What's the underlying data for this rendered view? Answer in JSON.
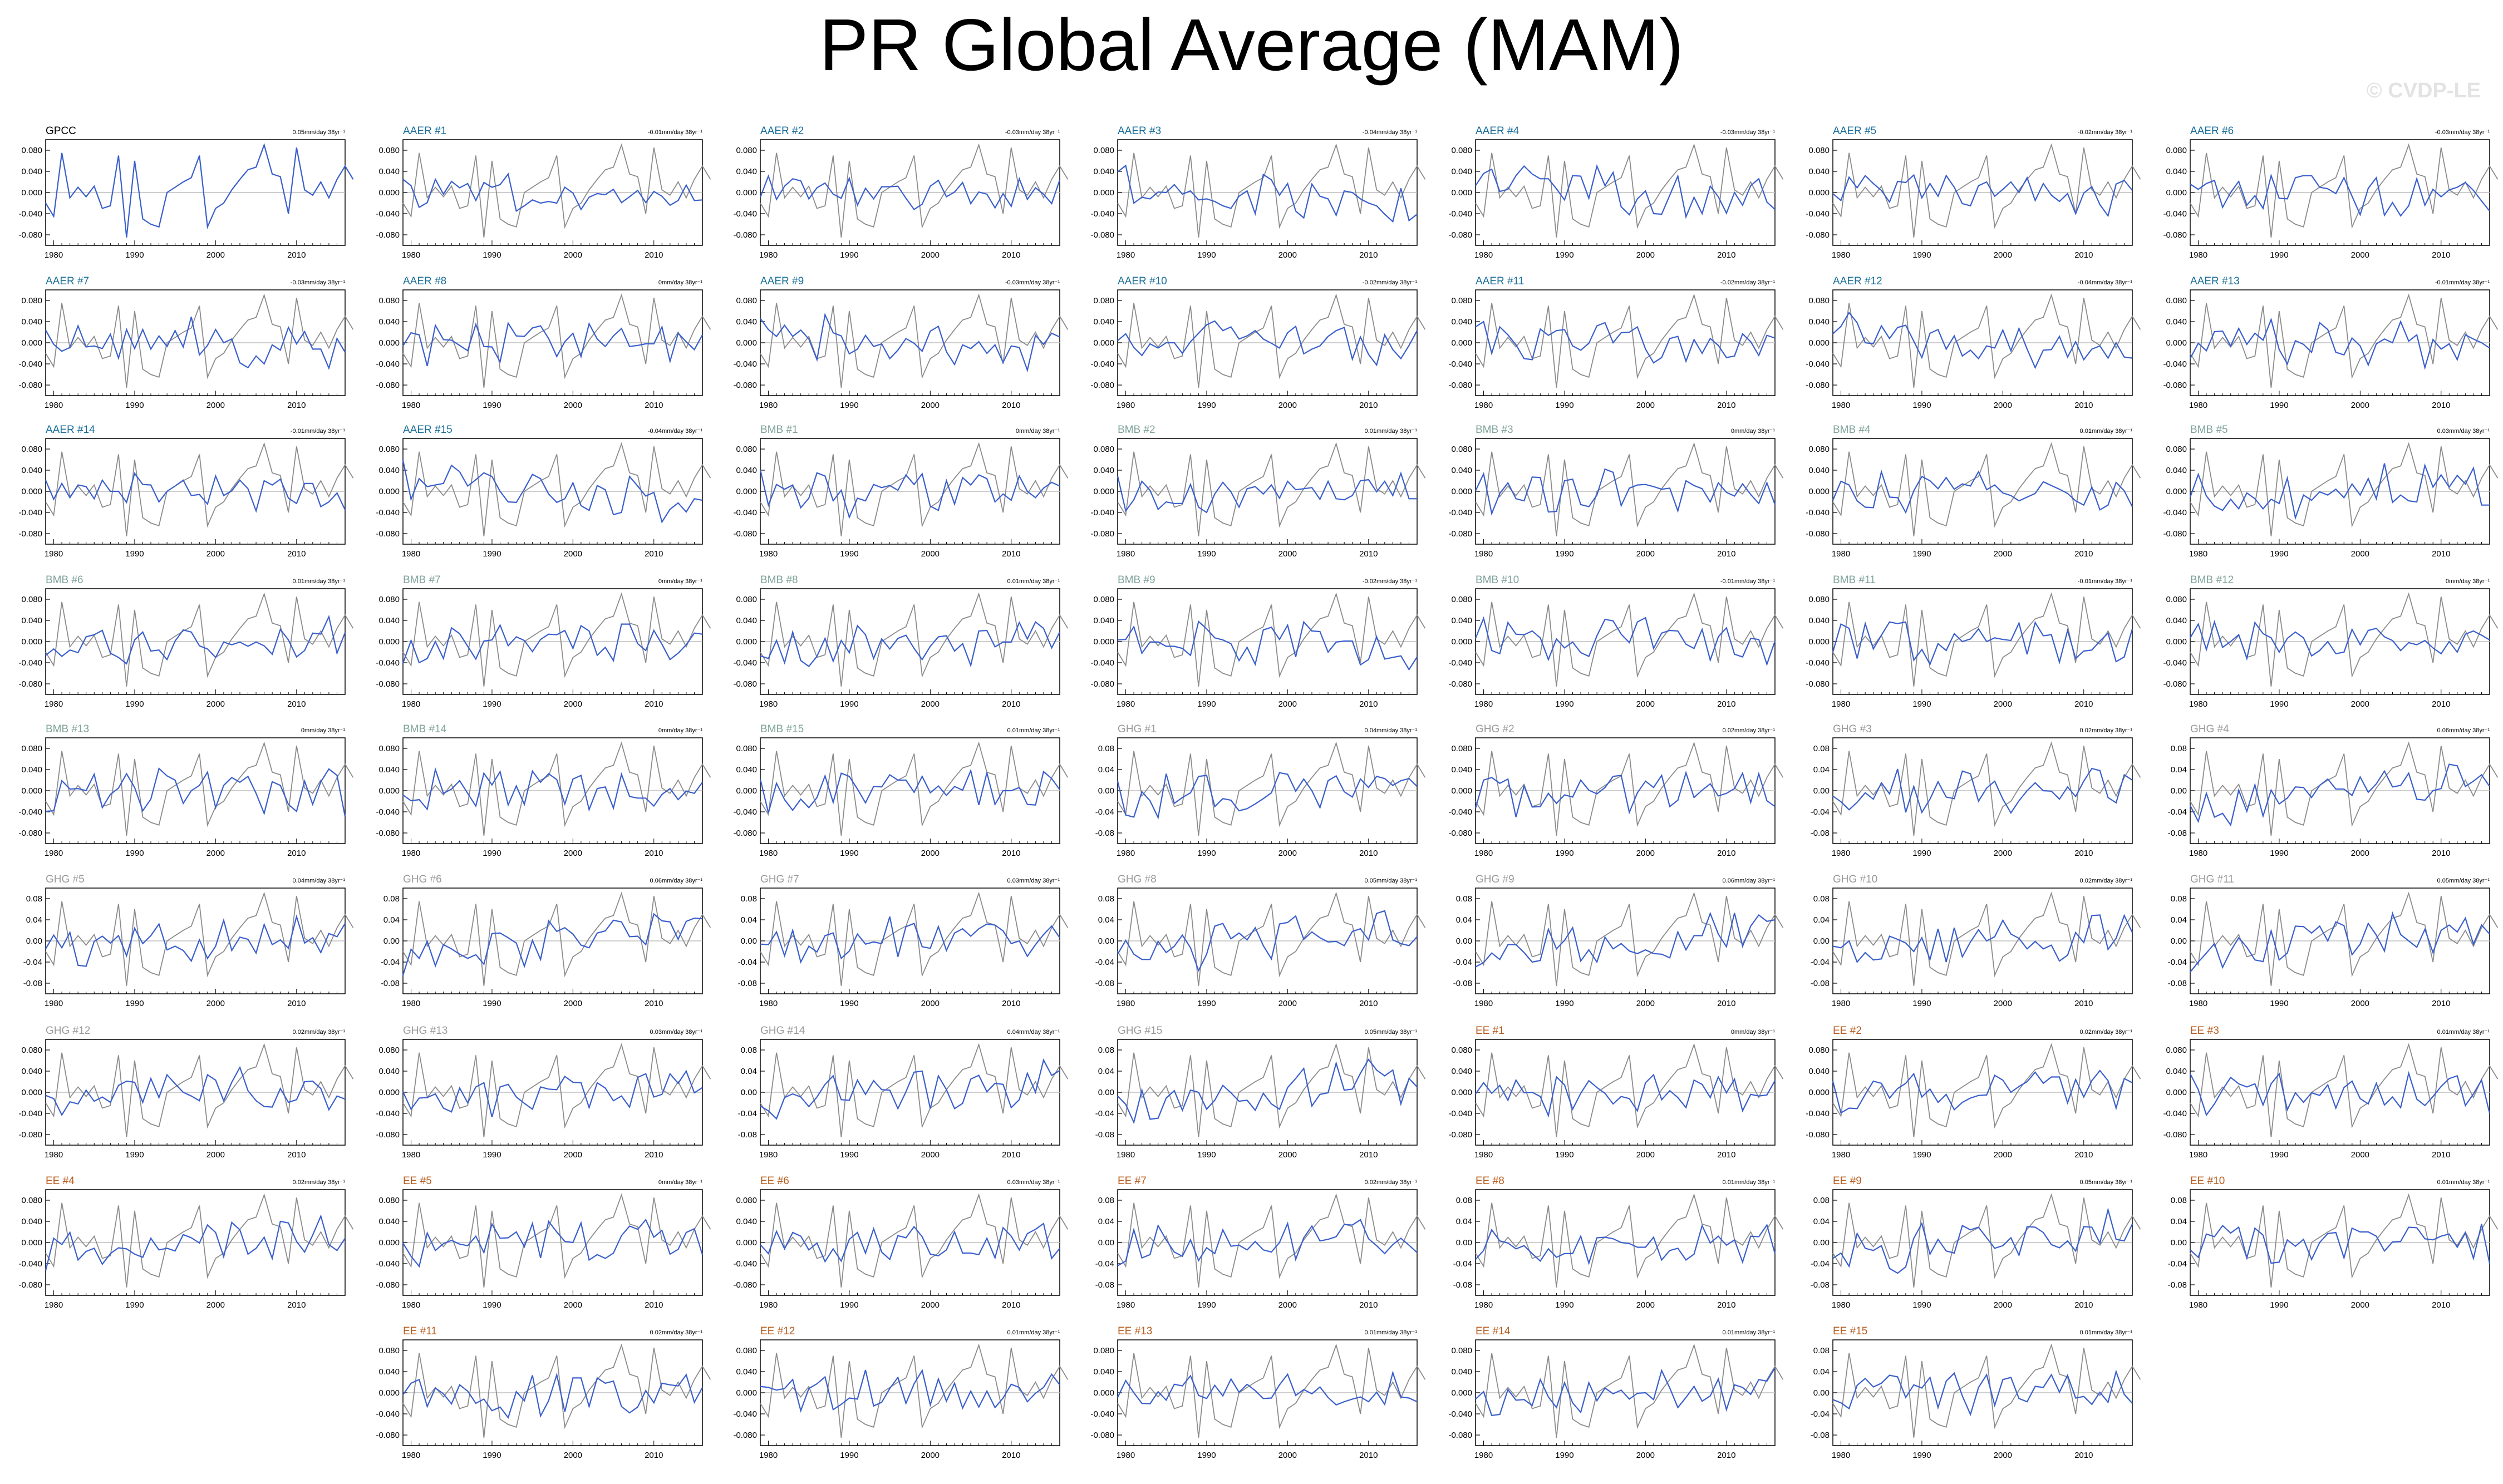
{
  "title": "PR Global Average (MAM)",
  "watermark": "© CVDP-LE",
  "colors": {
    "GPCC": "#000000",
    "AAER": "#1a6f9b",
    "BMB": "#7fa39a",
    "GHG": "#9a9a9a",
    "EE": "#b85c1e",
    "model_line": "#3a5fcd",
    "obs_line": "#8c8c8c",
    "zero_line": "#bdbdbd"
  },
  "chart_data": {
    "type": "line",
    "layout": "grid of small multiples, 7 columns",
    "x_start": 1979,
    "x_end": 2016,
    "xticks": [
      "1980",
      "1990",
      "2000",
      "2010"
    ],
    "yticks_wide": [
      "0.080",
      "0.040",
      "0.000",
      "-0.040",
      "-0.080"
    ],
    "yticks_narrow": [
      "0.08",
      "0.04",
      "0.00",
      "-0.04",
      "-0.08"
    ],
    "ylim": [
      -0.1,
      0.1
    ],
    "obs_series": [
      -0.02,
      -0.045,
      0.075,
      -0.01,
      0.01,
      -0.008,
      0.012,
      -0.03,
      -0.025,
      0.07,
      -0.085,
      0.06,
      -0.05,
      -0.06,
      -0.065,
      0.0,
      0.01,
      0.02,
      0.028,
      0.07,
      -0.065,
      -0.03,
      -0.02,
      0.005,
      0.025,
      0.043,
      0.048,
      0.09,
      0.035,
      0.03,
      -0.04,
      0.085,
      0.005,
      -0.005,
      0.02,
      -0.01,
      0.025,
      0.05,
      0.025
    ],
    "panels": [
      {
        "label": "GPCC",
        "trend": "0.05mm/day 38yr⁻¹",
        "group": "GPCC",
        "col": 0,
        "row": 0,
        "seed": 0,
        "narrow": false
      },
      {
        "label": "AAER #1",
        "trend": "-0.01mm/day 38yr⁻¹",
        "group": "AAER",
        "col": 1,
        "row": 0,
        "seed": 11,
        "narrow": false
      },
      {
        "label": "AAER #2",
        "trend": "-0.03mm/day 38yr⁻¹",
        "group": "AAER",
        "col": 2,
        "row": 0,
        "seed": 12,
        "narrow": false
      },
      {
        "label": "AAER #3",
        "trend": "-0.04mm/day 38yr⁻¹",
        "group": "AAER",
        "col": 3,
        "row": 0,
        "seed": 13,
        "narrow": false
      },
      {
        "label": "AAER #4",
        "trend": "-0.03mm/day 38yr⁻¹",
        "group": "AAER",
        "col": 4,
        "row": 0,
        "seed": 14,
        "narrow": false
      },
      {
        "label": "AAER #5",
        "trend": "-0.02mm/day 38yr⁻¹",
        "group": "AAER",
        "col": 5,
        "row": 0,
        "seed": 15,
        "narrow": false
      },
      {
        "label": "AAER #6",
        "trend": "-0.03mm/day 38yr⁻¹",
        "group": "AAER",
        "col": 6,
        "row": 0,
        "seed": 16,
        "narrow": false
      },
      {
        "label": "AAER #7",
        "trend": "-0.03mm/day 38yr⁻¹",
        "group": "AAER",
        "col": 0,
        "row": 1,
        "seed": 17,
        "narrow": false
      },
      {
        "label": "AAER #8",
        "trend": "0mm/day 38yr⁻¹",
        "group": "AAER",
        "col": 1,
        "row": 1,
        "seed": 18,
        "narrow": false
      },
      {
        "label": "AAER #9",
        "trend": "-0.03mm/day 38yr⁻¹",
        "group": "AAER",
        "col": 2,
        "row": 1,
        "seed": 19,
        "narrow": false
      },
      {
        "label": "AAER #10",
        "trend": "-0.02mm/day 38yr⁻¹",
        "group": "AAER",
        "col": 3,
        "row": 1,
        "seed": 20,
        "narrow": false
      },
      {
        "label": "AAER #11",
        "trend": "-0.02mm/day 38yr⁻¹",
        "group": "AAER",
        "col": 4,
        "row": 1,
        "seed": 21,
        "narrow": false
      },
      {
        "label": "AAER #12",
        "trend": "-0.04mm/day 38yr⁻¹",
        "group": "AAER",
        "col": 5,
        "row": 1,
        "seed": 22,
        "narrow": false
      },
      {
        "label": "AAER #13",
        "trend": "-0.01mm/day 38yr⁻¹",
        "group": "AAER",
        "col": 6,
        "row": 1,
        "seed": 23,
        "narrow": false
      },
      {
        "label": "AAER #14",
        "trend": "-0.01mm/day 38yr⁻¹",
        "group": "AAER",
        "col": 0,
        "row": 2,
        "seed": 24,
        "narrow": false
      },
      {
        "label": "AAER #15",
        "trend": "-0.04mm/day 38yr⁻¹",
        "group": "AAER",
        "col": 1,
        "row": 2,
        "seed": 25,
        "narrow": false
      },
      {
        "label": "BMB #1",
        "trend": "0mm/day 38yr⁻¹",
        "group": "BMB",
        "col": 2,
        "row": 2,
        "seed": 31,
        "narrow": false
      },
      {
        "label": "BMB #2",
        "trend": "0.01mm/day 38yr⁻¹",
        "group": "BMB",
        "col": 3,
        "row": 2,
        "seed": 32,
        "narrow": false
      },
      {
        "label": "BMB #3",
        "trend": "0mm/day 38yr⁻¹",
        "group": "BMB",
        "col": 4,
        "row": 2,
        "seed": 33,
        "narrow": false
      },
      {
        "label": "BMB #4",
        "trend": "0.01mm/day 38yr⁻¹",
        "group": "BMB",
        "col": 5,
        "row": 2,
        "seed": 34,
        "narrow": false
      },
      {
        "label": "BMB #5",
        "trend": "0.03mm/day 38yr⁻¹",
        "group": "BMB",
        "col": 6,
        "row": 2,
        "seed": 35,
        "narrow": false
      },
      {
        "label": "BMB #6",
        "trend": "0.01mm/day 38yr⁻¹",
        "group": "BMB",
        "col": 0,
        "row": 3,
        "seed": 36,
        "narrow": false
      },
      {
        "label": "BMB #7",
        "trend": "0mm/day 38yr⁻¹",
        "group": "BMB",
        "col": 1,
        "row": 3,
        "seed": 37,
        "narrow": false
      },
      {
        "label": "BMB #8",
        "trend": "0.01mm/day 38yr⁻¹",
        "group": "BMB",
        "col": 2,
        "row": 3,
        "seed": 38,
        "narrow": false
      },
      {
        "label": "BMB #9",
        "trend": "-0.02mm/day 38yr⁻¹",
        "group": "BMB",
        "col": 3,
        "row": 3,
        "seed": 39,
        "narrow": false
      },
      {
        "label": "BMB #10",
        "trend": "-0.01mm/day 38yr⁻¹",
        "group": "BMB",
        "col": 4,
        "row": 3,
        "seed": 40,
        "narrow": false
      },
      {
        "label": "BMB #11",
        "trend": "-0.01mm/day 38yr⁻¹",
        "group": "BMB",
        "col": 5,
        "row": 3,
        "seed": 41,
        "narrow": false
      },
      {
        "label": "BMB #12",
        "trend": "0mm/day 38yr⁻¹",
        "group": "BMB",
        "col": 6,
        "row": 3,
        "seed": 42,
        "narrow": false
      },
      {
        "label": "BMB #13",
        "trend": "0mm/day 38yr⁻¹",
        "group": "BMB",
        "col": 0,
        "row": 4,
        "seed": 43,
        "narrow": false
      },
      {
        "label": "BMB #14",
        "trend": "0mm/day 38yr⁻¹",
        "group": "BMB",
        "col": 1,
        "row": 4,
        "seed": 44,
        "narrow": false
      },
      {
        "label": "BMB #15",
        "trend": "0.01mm/day 38yr⁻¹",
        "group": "BMB",
        "col": 2,
        "row": 4,
        "seed": 45,
        "narrow": false
      },
      {
        "label": "GHG #1",
        "trend": "0.04mm/day 38yr⁻¹",
        "group": "GHG",
        "col": 3,
        "row": 4,
        "seed": 51,
        "narrow": true
      },
      {
        "label": "GHG #2",
        "trend": "0.02mm/day 38yr⁻¹",
        "group": "GHG",
        "col": 4,
        "row": 4,
        "seed": 52,
        "narrow": false
      },
      {
        "label": "GHG #3",
        "trend": "0.02mm/day 38yr⁻¹",
        "group": "GHG",
        "col": 5,
        "row": 4,
        "seed": 53,
        "narrow": true
      },
      {
        "label": "GHG #4",
        "trend": "0.06mm/day 38yr⁻¹",
        "group": "GHG",
        "col": 6,
        "row": 4,
        "seed": 54,
        "narrow": true
      },
      {
        "label": "GHG #5",
        "trend": "0.04mm/day 38yr⁻¹",
        "group": "GHG",
        "col": 0,
        "row": 5,
        "seed": 55,
        "narrow": true
      },
      {
        "label": "GHG #6",
        "trend": "0.06mm/day 38yr⁻¹",
        "group": "GHG",
        "col": 1,
        "row": 5,
        "seed": 56,
        "narrow": true
      },
      {
        "label": "GHG #7",
        "trend": "0.03mm/day 38yr⁻¹",
        "group": "GHG",
        "col": 2,
        "row": 5,
        "seed": 57,
        "narrow": true
      },
      {
        "label": "GHG #8",
        "trend": "0.05mm/day 38yr⁻¹",
        "group": "GHG",
        "col": 3,
        "row": 5,
        "seed": 58,
        "narrow": true
      },
      {
        "label": "GHG #9",
        "trend": "0.06mm/day 38yr⁻¹",
        "group": "GHG",
        "col": 4,
        "row": 5,
        "seed": 59,
        "narrow": true
      },
      {
        "label": "GHG #10",
        "trend": "0.02mm/day 38yr⁻¹",
        "group": "GHG",
        "col": 5,
        "row": 5,
        "seed": 60,
        "narrow": true
      },
      {
        "label": "GHG #11",
        "trend": "0.05mm/day 38yr⁻¹",
        "group": "GHG",
        "col": 6,
        "row": 5,
        "seed": 61,
        "narrow": true
      },
      {
        "label": "GHG #12",
        "trend": "0.02mm/day 38yr⁻¹",
        "group": "GHG",
        "col": 0,
        "row": 6,
        "seed": 62,
        "narrow": false
      },
      {
        "label": "GHG #13",
        "trend": "0.03mm/day 38yr⁻¹",
        "group": "GHG",
        "col": 1,
        "row": 6,
        "seed": 63,
        "narrow": false
      },
      {
        "label": "GHG #14",
        "trend": "0.04mm/day 38yr⁻¹",
        "group": "GHG",
        "col": 2,
        "row": 6,
        "seed": 64,
        "narrow": true
      },
      {
        "label": "GHG #15",
        "trend": "0.05mm/day 38yr⁻¹",
        "group": "GHG",
        "col": 3,
        "row": 6,
        "seed": 65,
        "narrow": true
      },
      {
        "label": "EE #1",
        "trend": "0mm/day 38yr⁻¹",
        "group": "EE",
        "col": 4,
        "row": 6,
        "seed": 71,
        "narrow": false
      },
      {
        "label": "EE #2",
        "trend": "0.02mm/day 38yr⁻¹",
        "group": "EE",
        "col": 5,
        "row": 6,
        "seed": 72,
        "narrow": false
      },
      {
        "label": "EE #3",
        "trend": "0.01mm/day 38yr⁻¹",
        "group": "EE",
        "col": 6,
        "row": 6,
        "seed": 73,
        "narrow": false
      },
      {
        "label": "EE #4",
        "trend": "0.02mm/day 38yr⁻¹",
        "group": "EE",
        "col": 0,
        "row": 7,
        "seed": 74,
        "narrow": false
      },
      {
        "label": "EE #5",
        "trend": "0mm/day 38yr⁻¹",
        "group": "EE",
        "col": 1,
        "row": 7,
        "seed": 75,
        "narrow": false
      },
      {
        "label": "EE #6",
        "trend": "0.03mm/day 38yr⁻¹",
        "group": "EE",
        "col": 2,
        "row": 7,
        "seed": 76,
        "narrow": false
      },
      {
        "label": "EE #7",
        "trend": "0.02mm/day 38yr⁻¹",
        "group": "EE",
        "col": 3,
        "row": 7,
        "seed": 77,
        "narrow": true
      },
      {
        "label": "EE #8",
        "trend": "0.01mm/day 38yr⁻¹",
        "group": "EE",
        "col": 4,
        "row": 7,
        "seed": 78,
        "narrow": true
      },
      {
        "label": "EE #9",
        "trend": "0.05mm/day 38yr⁻¹",
        "group": "EE",
        "col": 5,
        "row": 7,
        "seed": 79,
        "narrow": true
      },
      {
        "label": "EE #10",
        "trend": "0.01mm/day 38yr⁻¹",
        "group": "EE",
        "col": 6,
        "row": 7,
        "seed": 80,
        "narrow": true
      },
      {
        "label": "EE #11",
        "trend": "0.02mm/day 38yr⁻¹",
        "group": "EE",
        "col": 1,
        "row": 8,
        "seed": 81,
        "narrow": false
      },
      {
        "label": "EE #12",
        "trend": "0.01mm/day 38yr⁻¹",
        "group": "EE",
        "col": 2,
        "row": 8,
        "seed": 82,
        "narrow": false
      },
      {
        "label": "EE #13",
        "trend": "0.01mm/day 38yr⁻¹",
        "group": "EE",
        "col": 3,
        "row": 8,
        "seed": 83,
        "narrow": false
      },
      {
        "label": "EE #14",
        "trend": "0.01mm/day 38yr⁻¹",
        "group": "EE",
        "col": 4,
        "row": 8,
        "seed": 84,
        "narrow": false
      },
      {
        "label": "EE #15",
        "trend": "0.01mm/day 38yr⁻¹",
        "group": "EE",
        "col": 5,
        "row": 8,
        "seed": 85,
        "narrow": true
      }
    ]
  }
}
